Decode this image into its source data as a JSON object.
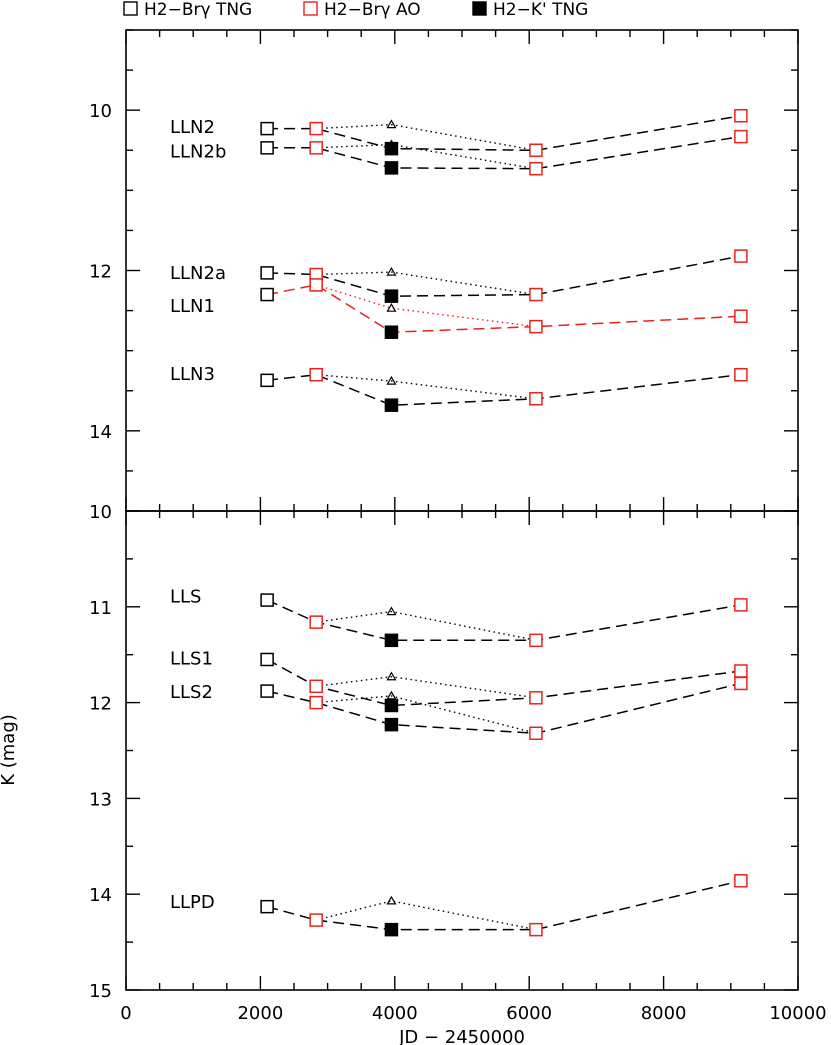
{
  "legend": [
    {
      "label": "H2−Brγ TNG",
      "symbol": "open-square",
      "color": "#000000"
    },
    {
      "label": "H2−Brγ AO",
      "symbol": "open-square",
      "color": "#e8231e"
    },
    {
      "label": "H2−K' TNG",
      "symbol": "filled-square",
      "color": "#000000"
    }
  ],
  "colors": {
    "black": "#000000",
    "red": "#e8231e"
  },
  "chart_data": [
    {
      "type": "scatter",
      "panel": "top",
      "xlim": [
        0,
        10000
      ],
      "ylim": [
        15,
        9
      ],
      "inverted_y": true,
      "y_ticks": [
        10,
        12,
        14
      ],
      "y_top_label": "",
      "grid": false,
      "legend_position": "top",
      "objects": [
        {
          "name": "LLN2",
          "label_y": 10.2,
          "line_color": "#000000",
          "brg_tng": [
            [
              2100,
              10.23
            ]
          ],
          "brg_ao": [
            [
              2830,
              10.23
            ],
            [
              6100,
              10.5
            ],
            [
              9150,
              10.07
            ]
          ],
          "kp_tng": [
            [
              3950,
              10.48
            ]
          ],
          "aux": [
            [
              3950,
              10.18
            ]
          ]
        },
        {
          "name": "LLN2b",
          "label_y": 10.5,
          "line_color": "#000000",
          "brg_tng": [
            [
              2100,
              10.47
            ]
          ],
          "brg_ao": [
            [
              2830,
              10.47
            ],
            [
              6100,
              10.73
            ],
            [
              9150,
              10.33
            ]
          ],
          "kp_tng": [
            [
              3950,
              10.72
            ]
          ],
          "aux": [
            [
              3950,
              10.43
            ]
          ]
        },
        {
          "name": "LLN2a",
          "label_y": 12.02,
          "line_color": "#000000",
          "brg_tng": [
            [
              2100,
              12.03
            ]
          ],
          "brg_ao": [
            [
              2830,
              12.05
            ],
            [
              6100,
              12.3
            ],
            [
              9150,
              11.82
            ]
          ],
          "kp_tng": [
            [
              3950,
              12.32
            ]
          ],
          "aux": [
            [
              3950,
              12.02
            ]
          ]
        },
        {
          "name": "LLN1",
          "label_y": 12.43,
          "line_color": "#e8231e",
          "brg_tng": [
            [
              2100,
              12.3
            ]
          ],
          "brg_ao": [
            [
              2830,
              12.18
            ],
            [
              6100,
              12.7
            ],
            [
              9150,
              12.57
            ]
          ],
          "kp_tng": [
            [
              3950,
              12.77
            ]
          ],
          "aux": [
            [
              3950,
              12.47
            ]
          ]
        },
        {
          "name": "LLN3",
          "label_y": 13.28,
          "line_color": "#000000",
          "brg_tng": [
            [
              2100,
              13.37
            ]
          ],
          "brg_ao": [
            [
              2830,
              13.3
            ],
            [
              6100,
              13.6
            ],
            [
              9150,
              13.3
            ]
          ],
          "kp_tng": [
            [
              3950,
              13.68
            ]
          ],
          "aux": [
            [
              3950,
              13.38
            ]
          ]
        }
      ]
    },
    {
      "type": "scatter",
      "panel": "bottom",
      "xlim": [
        0,
        10000
      ],
      "ylim": [
        15,
        10
      ],
      "inverted_y": true,
      "y_ticks": [
        10,
        11,
        12,
        13,
        14,
        15
      ],
      "x_ticks": [
        0,
        2000,
        4000,
        6000,
        8000,
        10000
      ],
      "xlabel": "JD − 2450000",
      "ylabel": "K (mag)",
      "grid": false,
      "objects": [
        {
          "name": "LLS",
          "label_y": 10.88,
          "line_color": "#000000",
          "brg_tng": [
            [
              2100,
              10.93
            ]
          ],
          "brg_ao": [
            [
              2830,
              11.16
            ],
            [
              6100,
              11.35
            ],
            [
              9150,
              10.98
            ]
          ],
          "kp_tng": [
            [
              3950,
              11.35
            ]
          ],
          "aux": [
            [
              3950,
              11.05
            ]
          ]
        },
        {
          "name": "LLS1",
          "label_y": 11.53,
          "line_color": "#000000",
          "brg_tng": [
            [
              2100,
              11.55
            ]
          ],
          "brg_ao": [
            [
              2830,
              11.83
            ],
            [
              6100,
              11.95
            ],
            [
              9150,
              11.67
            ]
          ],
          "kp_tng": [
            [
              3950,
              12.03
            ]
          ],
          "aux": [
            [
              3950,
              11.73
            ]
          ]
        },
        {
          "name": "LLS2",
          "label_y": 11.88,
          "line_color": "#000000",
          "brg_tng": [
            [
              2100,
              11.88
            ]
          ],
          "brg_ao": [
            [
              2830,
              12.0
            ],
            [
              6100,
              12.32
            ],
            [
              9150,
              11.8
            ]
          ],
          "kp_tng": [
            [
              3950,
              12.23
            ]
          ],
          "aux": [
            [
              3950,
              11.93
            ]
          ]
        },
        {
          "name": "LLPD",
          "label_y": 14.07,
          "line_color": "#000000",
          "brg_tng": [
            [
              2100,
              14.13
            ]
          ],
          "brg_ao": [
            [
              2830,
              14.27
            ],
            [
              6100,
              14.37
            ],
            [
              9150,
              13.86
            ]
          ],
          "kp_tng": [
            [
              3950,
              14.37
            ]
          ],
          "aux": [
            [
              3950,
              14.07
            ]
          ]
        }
      ]
    }
  ]
}
